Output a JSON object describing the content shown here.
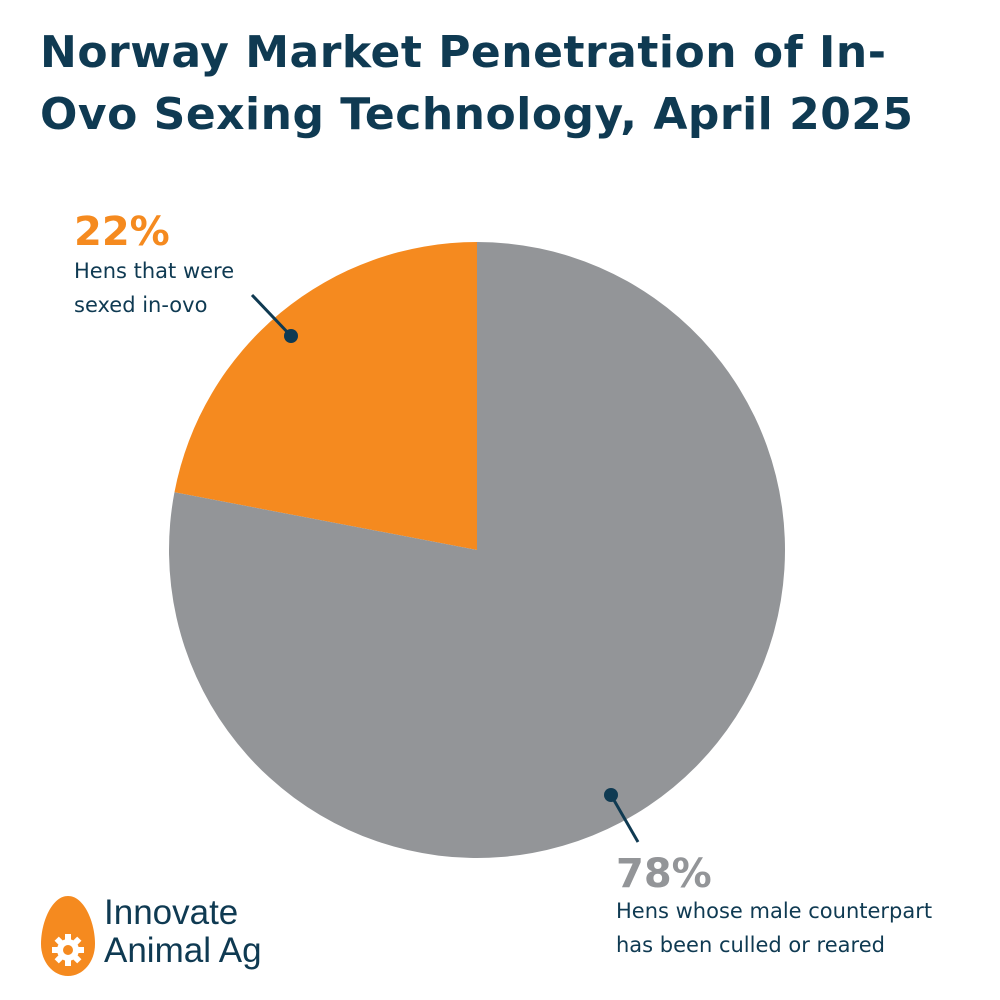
{
  "colors": {
    "title": "#0f3a52",
    "orange": "#f58a1f",
    "gray": "#939598",
    "logo_text": "#0f3a52"
  },
  "chart_data": {
    "type": "pie",
    "title": "Norway Market Penetration of In-Ovo Sexing Technology, April 2025",
    "start_angle_deg": 0,
    "direction": "counterclockwise-from-top-for-first-slice",
    "slices": [
      {
        "label": "Hens that were sexed in-ovo",
        "value": 22,
        "value_label": "22%",
        "color": "#f58a1f"
      },
      {
        "label": "Hens whose male counterpart has been culled or reared",
        "value": 78,
        "value_label": "78%",
        "color": "#939598"
      }
    ]
  },
  "labels": {
    "orange_line1": "Hens that were",
    "orange_line2": "sexed in-ovo",
    "gray_line1": "Hens whose male counterpart",
    "gray_line2": "has been culled or reared"
  },
  "logo": {
    "line1": "Innovate",
    "line2": "Animal Ag",
    "icon": "egg-gear-icon"
  }
}
